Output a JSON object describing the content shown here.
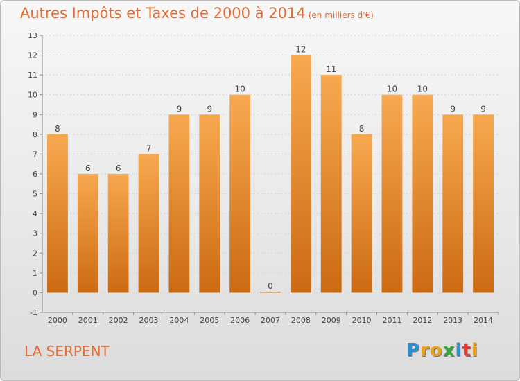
{
  "title": "Autres Impôts et Taxes de 2000 à 2014",
  "unit": "(en milliers d'€)",
  "place": "LA SERPENT",
  "logo": {
    "letters": [
      "P",
      "r",
      "o",
      "x",
      "i",
      "t",
      "i"
    ],
    "colors": [
      "#2a8fd4",
      "#e8a21b",
      "#e8a21b",
      "#35a83a",
      "#2a8fd4",
      "#e33c2f",
      "#e8a21b"
    ]
  },
  "colors": {
    "bar_light": "#f7a94f",
    "bar_dark": "#cc6a12",
    "title": "#e46b32"
  },
  "chart_data": {
    "type": "bar",
    "title": "Autres Impôts et Taxes de 2000 à 2014",
    "xlabel": "",
    "ylabel": "",
    "categories": [
      "2000",
      "2001",
      "2002",
      "2003",
      "2004",
      "2005",
      "2006",
      "2007",
      "2008",
      "2009",
      "2010",
      "2011",
      "2012",
      "2013",
      "2014"
    ],
    "values": [
      8,
      6,
      6,
      7,
      9,
      9,
      10,
      0,
      12,
      11,
      8,
      10,
      10,
      9,
      9
    ],
    "ylim": [
      -1,
      13
    ],
    "yticks": [
      -1,
      0,
      1,
      2,
      3,
      4,
      5,
      6,
      7,
      8,
      9,
      10,
      11,
      12,
      13
    ],
    "grid": true
  }
}
